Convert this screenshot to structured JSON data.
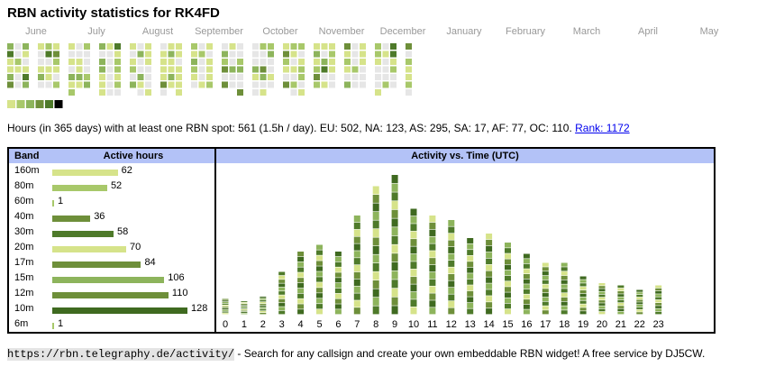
{
  "title": "RBN activity statistics for RK4FD",
  "colors": {
    "empty": "#e6e6e6",
    "levels": [
      "#d6e38a",
      "#a8c86a",
      "#8db45c",
      "#6e8f3a",
      "#4e7a2a",
      "#000000"
    ],
    "today_outline": "#cc3333",
    "header_bg": "#b3c2f7"
  },
  "heatmap": {
    "months": [
      "June",
      "July",
      "August",
      "September",
      "October",
      "November",
      "December",
      "January",
      "February",
      "March",
      "April",
      "May"
    ],
    "weekday_rows": 7,
    "legend_levels": 6
  },
  "summary": {
    "text": "Hours (in 365 days) with at least one RBN spot: 561 (1.5h / day). EU: 502, NA: 123, AS: 295, SA: 17, AF: 77, OC: 110.",
    "rank_link": "Rank: 1172"
  },
  "band_panel": {
    "header_band": "Band",
    "header_hours": "Active hours"
  },
  "time_panel": {
    "header": "Activity vs. Time (UTC)"
  },
  "chart_data": [
    {
      "type": "bar",
      "title": "Active hours",
      "categories": [
        "160m",
        "80m",
        "60m",
        "40m",
        "30m",
        "20m",
        "17m",
        "15m",
        "12m",
        "10m",
        "6m"
      ],
      "values": [
        62,
        52,
        1,
        36,
        58,
        70,
        84,
        106,
        110,
        128,
        1
      ],
      "colors": [
        "#d6e38a",
        "#a8c86a",
        "#a8c86a",
        "#6e8f3a",
        "#4e7a2a",
        "#d6e38a",
        "#6e8f3a",
        "#8db45c",
        "#6e8f3a",
        "#3f6a20",
        "#a8c86a"
      ]
    },
    {
      "type": "bar",
      "title": "Activity vs. Time (UTC)",
      "stacked": true,
      "categories": [
        "0",
        "1",
        "2",
        "3",
        "4",
        "5",
        "6",
        "7",
        "8",
        "9",
        "10",
        "11",
        "12",
        "13",
        "14",
        "15",
        "16",
        "17",
        "18",
        "19",
        "20",
        "21",
        "22",
        "23"
      ],
      "values": [
        7,
        6,
        8,
        19,
        28,
        31,
        28,
        44,
        57,
        62,
        47,
        44,
        42,
        34,
        36,
        32,
        27,
        23,
        23,
        17,
        14,
        13,
        11,
        13
      ],
      "segment_colors": [
        "#d6e38a",
        "#8db45c",
        "#6e8f3a",
        "#4e7a2a",
        "#3f6a20"
      ],
      "ylim": [
        0,
        62
      ]
    }
  ],
  "footer": {
    "url": "https://rbn.telegraphy.de/activity/",
    "text": " - Search for any callsign and create your own embeddable RBN widget! A free service by DJ5CW."
  }
}
